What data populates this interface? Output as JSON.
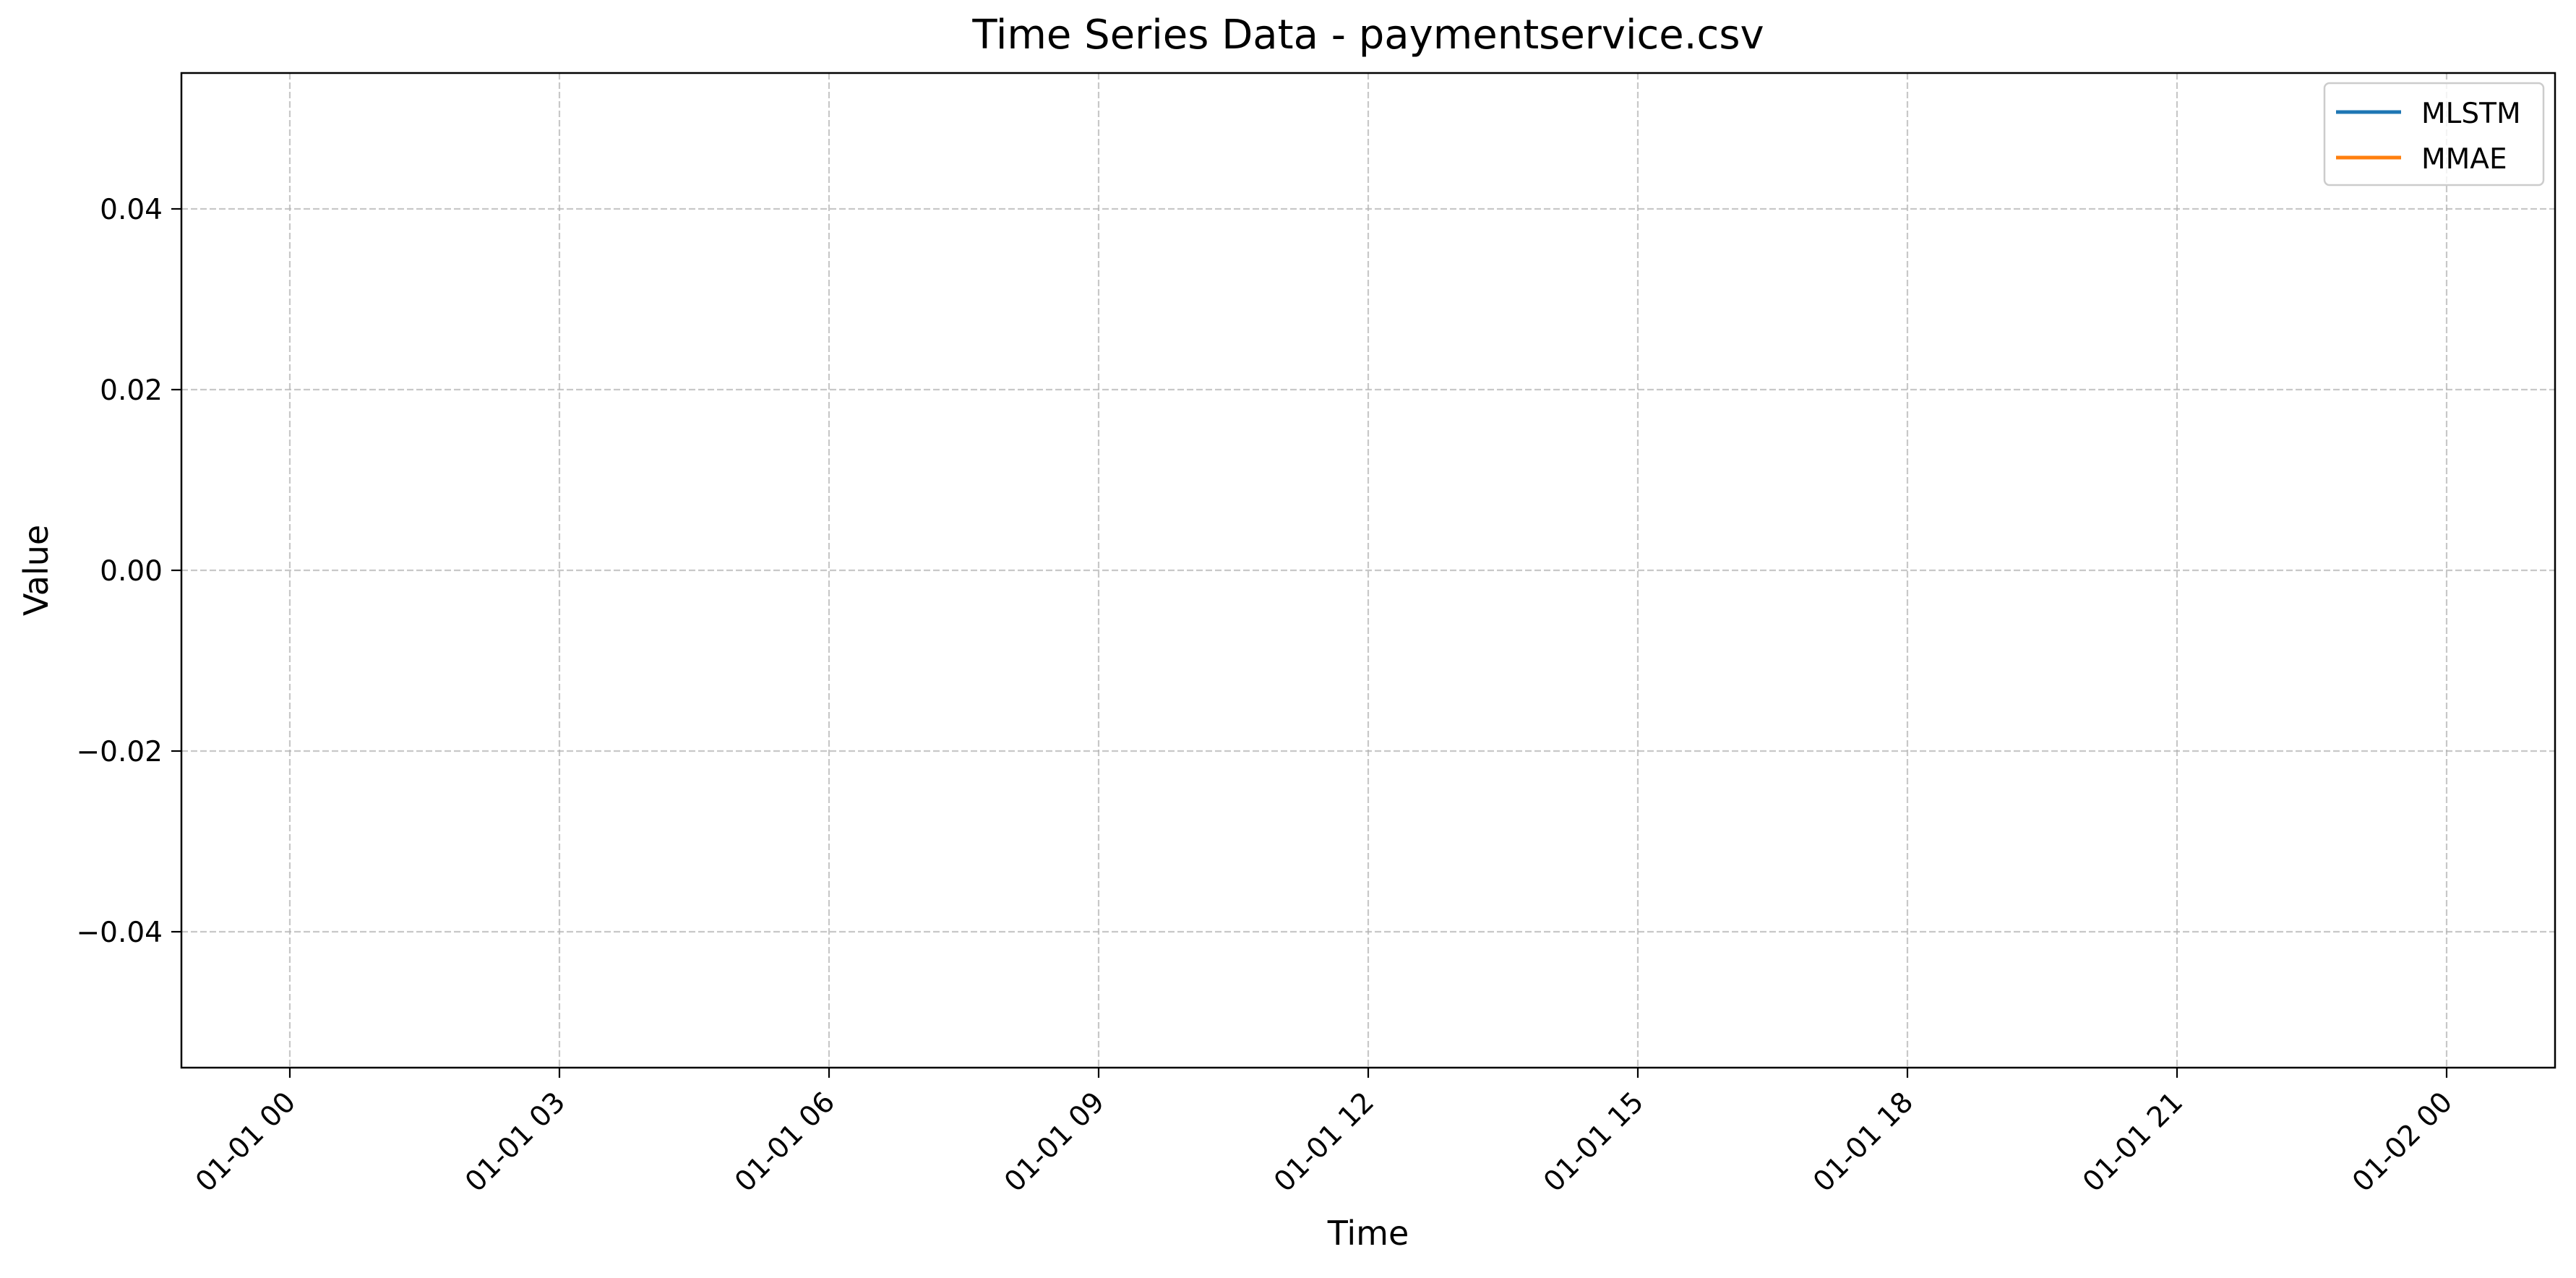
{
  "chart_data": {
    "type": "line",
    "title": "Time Series Data - paymentservice.csv",
    "xlabel": "Time",
    "ylabel": "Value",
    "x_ticks": [
      "01-01 00",
      "01-01 03",
      "01-01 06",
      "01-01 09",
      "01-01 12",
      "01-01 15",
      "01-01 18",
      "01-01 21",
      "01-02 00"
    ],
    "xlim": [
      "01-01 00",
      "01-02 00"
    ],
    "y_ticks": [
      0.04,
      0.02,
      0.0,
      -0.02,
      -0.04
    ],
    "y_tick_labels": [
      "0.04",
      "0.02",
      "0.00",
      "−0.02",
      "−0.04"
    ],
    "ylim": [
      -0.055,
      0.055
    ],
    "grid": true,
    "grid_style": "dashed",
    "legend_position": "top-right",
    "series": [
      {
        "name": "MLSTM",
        "color": "#1f77b4",
        "x": [],
        "values": []
      },
      {
        "name": "MMAE",
        "color": "#ff7f0e",
        "x": [],
        "values": []
      }
    ]
  }
}
